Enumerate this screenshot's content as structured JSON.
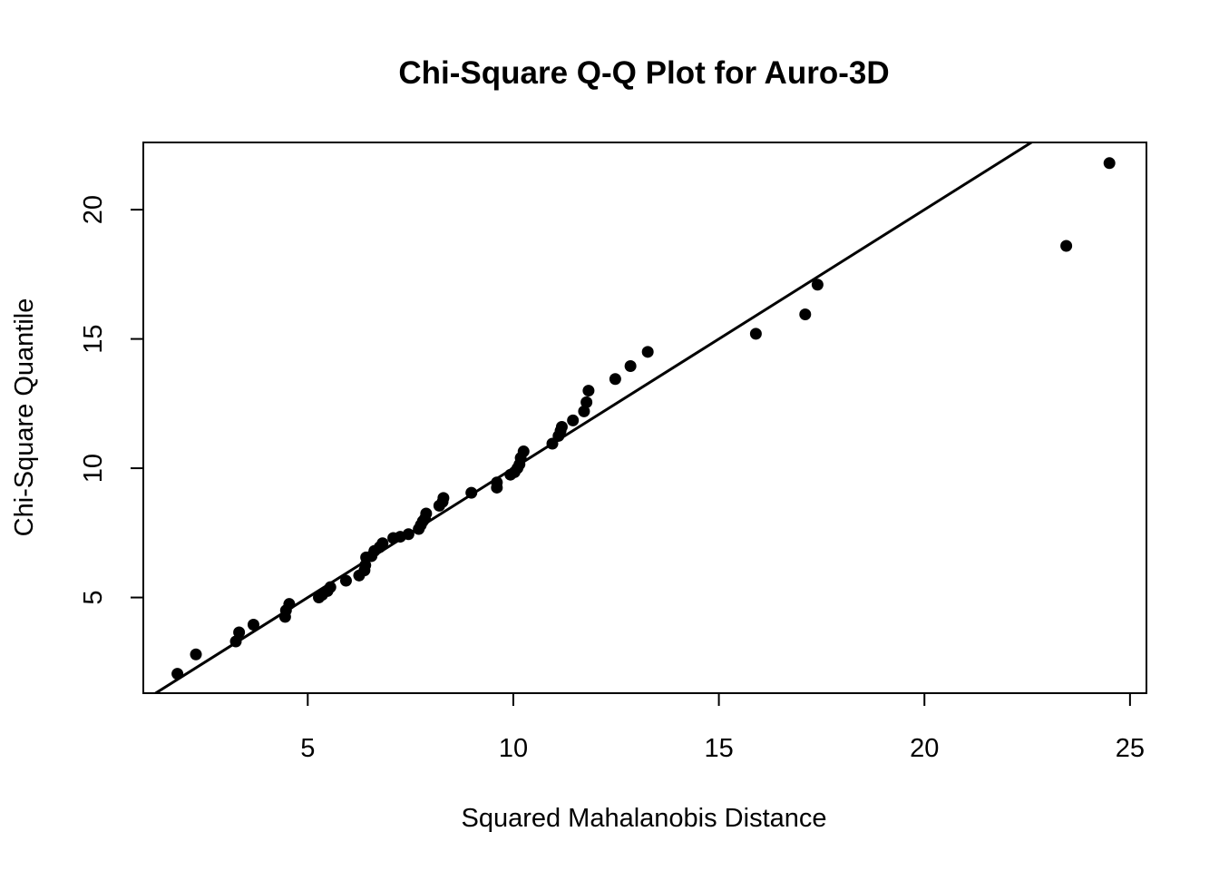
{
  "chart_data": {
    "type": "scatter",
    "title": "Chi-Square Q-Q Plot for Auro-3D",
    "xlabel": "Squared Mahalanobis Distance",
    "ylabel": "Chi-Square Quantile",
    "xlim": [
      1.0,
      25.4
    ],
    "ylim": [
      1.3,
      22.6
    ],
    "xticks": [
      5,
      10,
      15,
      20,
      25
    ],
    "yticks": [
      5,
      10,
      15,
      20
    ],
    "grid": false,
    "legend": "none",
    "colors": {
      "points": "#000000",
      "line": "#000000",
      "frame": "#000000"
    },
    "reference_line": {
      "slope": 1,
      "intercept": 0
    },
    "points": [
      [
        1.83,
        2.05
      ],
      [
        2.28,
        2.8
      ],
      [
        3.25,
        3.3
      ],
      [
        3.33,
        3.65
      ],
      [
        3.68,
        3.95
      ],
      [
        4.45,
        4.25
      ],
      [
        4.47,
        4.5
      ],
      [
        4.55,
        4.75
      ],
      [
        5.27,
        5.0
      ],
      [
        5.35,
        5.1
      ],
      [
        5.48,
        5.25
      ],
      [
        5.55,
        5.4
      ],
      [
        5.93,
        5.65
      ],
      [
        6.25,
        5.85
      ],
      [
        6.38,
        6.05
      ],
      [
        6.4,
        6.25
      ],
      [
        6.42,
        6.55
      ],
      [
        6.55,
        6.6
      ],
      [
        6.62,
        6.8
      ],
      [
        6.75,
        6.95
      ],
      [
        6.82,
        7.1
      ],
      [
        7.08,
        7.3
      ],
      [
        7.25,
        7.35
      ],
      [
        7.45,
        7.45
      ],
      [
        7.7,
        7.65
      ],
      [
        7.75,
        7.8
      ],
      [
        7.8,
        7.95
      ],
      [
        7.85,
        8.05
      ],
      [
        7.88,
        8.25
      ],
      [
        8.2,
        8.55
      ],
      [
        8.28,
        8.7
      ],
      [
        8.3,
        8.85
      ],
      [
        8.98,
        9.05
      ],
      [
        9.6,
        9.25
      ],
      [
        9.6,
        9.45
      ],
      [
        9.93,
        9.75
      ],
      [
        10.03,
        9.85
      ],
      [
        10.1,
        10.0
      ],
      [
        10.15,
        10.15
      ],
      [
        10.18,
        10.4
      ],
      [
        10.25,
        10.65
      ],
      [
        10.95,
        10.95
      ],
      [
        11.1,
        11.25
      ],
      [
        11.15,
        11.45
      ],
      [
        11.18,
        11.6
      ],
      [
        11.45,
        11.85
      ],
      [
        11.72,
        12.2
      ],
      [
        11.78,
        12.55
      ],
      [
        11.83,
        13.0
      ],
      [
        12.48,
        13.45
      ],
      [
        12.85,
        13.95
      ],
      [
        13.27,
        14.5
      ],
      [
        15.9,
        15.2
      ],
      [
        17.1,
        15.95
      ],
      [
        17.4,
        17.1
      ],
      [
        23.45,
        18.6
      ],
      [
        24.5,
        21.8
      ]
    ]
  }
}
